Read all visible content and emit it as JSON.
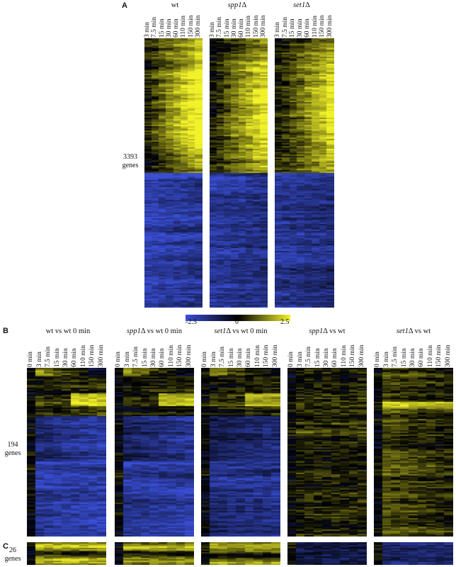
{
  "panel_a": {
    "letter": "A",
    "gene_label_count": "3393",
    "gene_label_word": "genes",
    "columns": [
      "3 min",
      "7.5 min",
      "15 min",
      "30 min",
      "60 min",
      "110 min",
      "150 min",
      "300 min"
    ],
    "heatmaps": [
      {
        "title": "wt",
        "title_italic": false
      },
      {
        "title": "spp1",
        "title_italic": true,
        "suffix": "Δ"
      },
      {
        "title": "set1",
        "title_italic": true,
        "suffix": "Δ"
      }
    ]
  },
  "colorbar": {
    "min_label": "-2.5",
    "mid_label": "0",
    "max_label": "2.5",
    "colors": {
      "low": "#3a4fd6",
      "mid": "#000000",
      "high": "#f2f22a"
    }
  },
  "panel_b": {
    "letter": "B",
    "gene_label_count": "194",
    "gene_label_word": "genes",
    "columns": [
      "0 min",
      "3 min",
      "7.5 min",
      "15 min",
      "30 min",
      "60 min",
      "110 min",
      "150 min",
      "300 min"
    ],
    "heatmaps": [
      {
        "title_pre": "wt vs wt 0 min",
        "italic": "",
        "suffix": ""
      },
      {
        "italic": "spp1",
        "suffix": "Δ vs wt 0 min"
      },
      {
        "italic": "set1",
        "suffix": "Δ vs wt 0 min"
      },
      {
        "italic": "spp1",
        "suffix": "Δ vs wt"
      },
      {
        "italic": "set1",
        "suffix": "Δ vs wt"
      }
    ]
  },
  "panel_c": {
    "letter": "C",
    "gene_label_count": "26",
    "gene_label_word": "genes"
  }
}
